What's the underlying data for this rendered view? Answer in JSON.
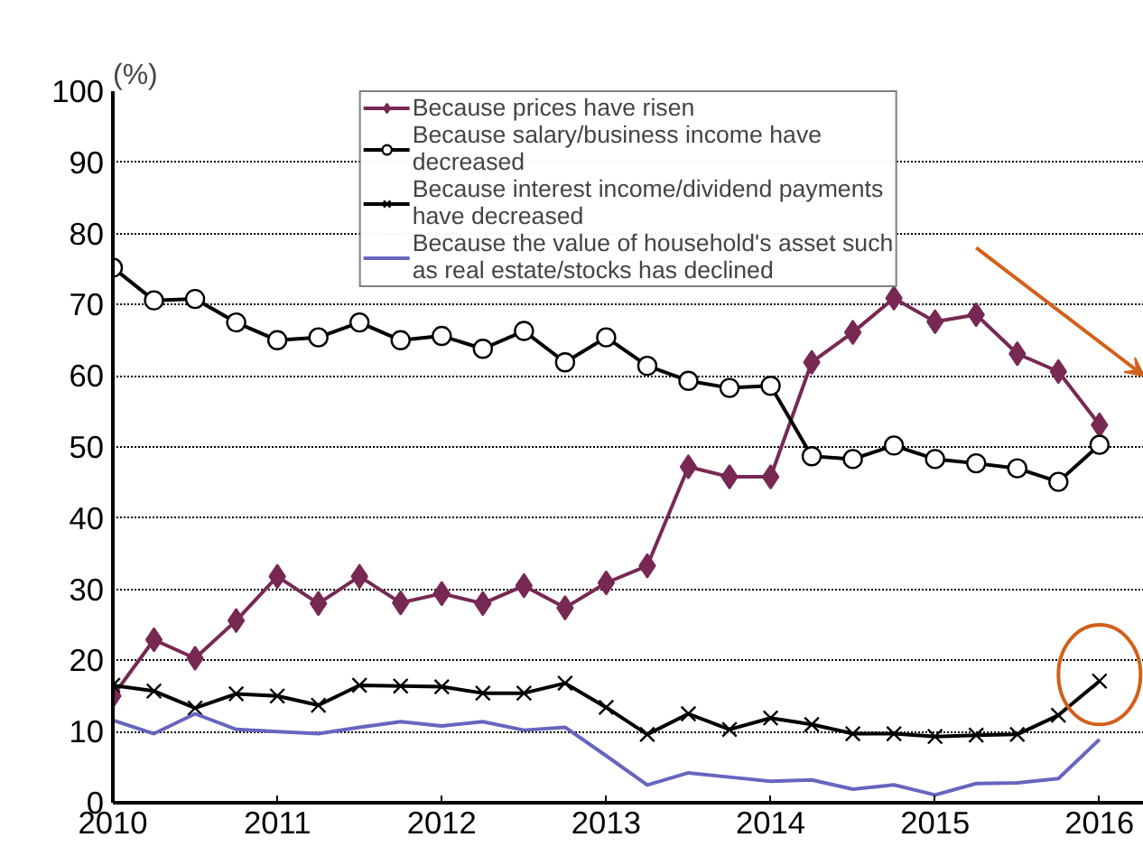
{
  "chart_data": {
    "type": "line",
    "ylabel": "(%)",
    "x": [
      2010,
      2010.25,
      2010.5,
      2010.75,
      2011,
      2011.25,
      2011.5,
      2011.75,
      2012,
      2012.25,
      2012.5,
      2012.75,
      2013,
      2013.25,
      2013.5,
      2013.75,
      2014,
      2014.25,
      2014.5,
      2014.75,
      2015,
      2015.25,
      2015.5,
      2015.75,
      2016
    ],
    "xlim": [
      2010,
      2016.27
    ],
    "xticks": [
      2010,
      2011,
      2012,
      2013,
      2014,
      2015,
      2016
    ],
    "ylim": [
      0,
      100
    ],
    "yticks": [
      0,
      10,
      20,
      30,
      40,
      50,
      60,
      70,
      80,
      90,
      100
    ],
    "grid": "y",
    "legend": "top",
    "series": [
      {
        "name": "Because prices have risen",
        "color": "#772953",
        "marker": "diamond",
        "values": [
          15.0,
          22.9,
          20.3,
          25.6,
          31.8,
          28.0,
          31.8,
          28.1,
          29.4,
          28.0,
          30.5,
          27.4,
          30.9,
          33.3,
          47.2,
          45.8,
          45.8,
          61.9,
          66.1,
          70.9,
          67.6,
          68.6,
          63.1,
          60.6,
          53.1
        ]
      },
      {
        "name": "Because salary/business income have decreased",
        "color": "#000000",
        "marker": "circle",
        "values": [
          75.2,
          70.6,
          70.8,
          67.5,
          65.0,
          65.4,
          67.5,
          65.0,
          65.6,
          63.8,
          66.3,
          61.9,
          65.4,
          61.4,
          59.3,
          58.3,
          58.6,
          48.7,
          48.3,
          50.2,
          48.3,
          47.7,
          47.0,
          45.1,
          50.3
        ]
      },
      {
        "name": "Because interest income/dividend payments have decreased",
        "color": "#000000",
        "marker": "cross",
        "values": [
          16.5,
          15.7,
          13.3,
          15.3,
          15.0,
          13.7,
          16.5,
          16.4,
          16.3,
          15.4,
          15.4,
          16.8,
          13.4,
          9.6,
          12.5,
          10.3,
          11.9,
          11.0,
          9.7,
          9.7,
          9.3,
          9.5,
          9.6,
          12.3,
          17.1
        ]
      },
      {
        "name": "Because the value of household's asset such as real estate/stocks has declined",
        "color": "#6666c0",
        "marker": "none",
        "values": [
          11.6,
          9.7,
          12.5,
          10.3,
          10.0,
          9.7,
          10.6,
          11.4,
          10.8,
          11.4,
          10.2,
          10.6,
          6.6,
          2.5,
          4.2,
          3.6,
          3.0,
          3.2,
          1.9,
          2.5,
          1.1,
          2.7,
          2.8,
          3.4,
          8.9
        ]
      }
    ]
  }
}
